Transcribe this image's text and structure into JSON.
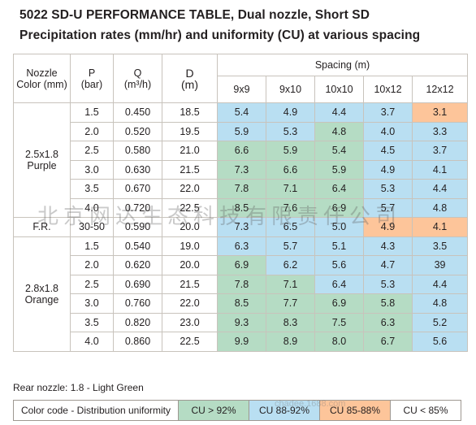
{
  "title": "5022 SD-U PERFORMANCE  TABLE, Dual nozzle, Short SD",
  "subtitle": "Precipitation rates (mm/hr) and uniformity (CU) at various spacing",
  "headers": {
    "nozzle": "Nozzle Color (mm)",
    "p": "P",
    "p_unit": "(bar)",
    "q": "Q",
    "q_unit": "(m³/h)",
    "d": "D",
    "d_unit": "(m)",
    "spacing": "Spacing (m)",
    "spacings": [
      "9x9",
      "9x10",
      "10x10",
      "10x12",
      "12x12"
    ]
  },
  "groups": [
    {
      "label_line1": "2.5x1.8",
      "label_line2": "Purple",
      "rows": [
        {
          "p": "1.5",
          "q": "0.450",
          "d": "18.5",
          "cells": [
            {
              "v": "5.4",
              "c": "b"
            },
            {
              "v": "4.9",
              "c": "b"
            },
            {
              "v": "4.4",
              "c": "b"
            },
            {
              "v": "3.7",
              "c": "b"
            },
            {
              "v": "3.1",
              "c": "o"
            }
          ]
        },
        {
          "p": "2.0",
          "q": "0.520",
          "d": "19.5",
          "cells": [
            {
              "v": "5.9",
              "c": "b"
            },
            {
              "v": "5.3",
              "c": "b"
            },
            {
              "v": "4.8",
              "c": "g"
            },
            {
              "v": "4.0",
              "c": "b"
            },
            {
              "v": "3.3",
              "c": "b"
            }
          ]
        },
        {
          "p": "2.5",
          "q": "0.580",
          "d": "21.0",
          "cells": [
            {
              "v": "6.6",
              "c": "g"
            },
            {
              "v": "5.9",
              "c": "g"
            },
            {
              "v": "5.4",
              "c": "g"
            },
            {
              "v": "4.5",
              "c": "b"
            },
            {
              "v": "3.7",
              "c": "b"
            }
          ]
        },
        {
          "p": "3.0",
          "q": "0.630",
          "d": "21.5",
          "cells": [
            {
              "v": "7.3",
              "c": "g"
            },
            {
              "v": "6.6",
              "c": "g"
            },
            {
              "v": "5.9",
              "c": "g"
            },
            {
              "v": "4.9",
              "c": "b"
            },
            {
              "v": "4.1",
              "c": "b"
            }
          ]
        },
        {
          "p": "3.5",
          "q": "0.670",
          "d": "22.0",
          "cells": [
            {
              "v": "7.8",
              "c": "g"
            },
            {
              "v": "7.1",
              "c": "g"
            },
            {
              "v": "6.4",
              "c": "g"
            },
            {
              "v": "5.3",
              "c": "b"
            },
            {
              "v": "4.4",
              "c": "b"
            }
          ]
        },
        {
          "p": "4.0",
          "q": "0.720",
          "d": "22.5",
          "cells": [
            {
              "v": "8.5",
              "c": "g"
            },
            {
              "v": "7.6",
              "c": "g"
            },
            {
              "v": "6.9",
              "c": "g"
            },
            {
              "v": "5.7",
              "c": "b"
            },
            {
              "v": "4.8",
              "c": "b"
            }
          ]
        }
      ]
    },
    {
      "label_line1": "F.R.",
      "label_line2": "",
      "rows": [
        {
          "p": "30-50",
          "q": "0.590",
          "d": "20.0",
          "cells": [
            {
              "v": "7.3",
              "c": "b"
            },
            {
              "v": "6.5",
              "c": "b"
            },
            {
              "v": "5.0",
              "c": "b"
            },
            {
              "v": "4.9",
              "c": "o"
            },
            {
              "v": "4.1",
              "c": "o"
            }
          ]
        }
      ]
    },
    {
      "label_line1": "2.8x1.8",
      "label_line2": "Orange",
      "rows": [
        {
          "p": "1.5",
          "q": "0.540",
          "d": "19.0",
          "cells": [
            {
              "v": "6.3",
              "c": "b"
            },
            {
              "v": "5.7",
              "c": "b"
            },
            {
              "v": "5.1",
              "c": "b"
            },
            {
              "v": "4.3",
              "c": "b"
            },
            {
              "v": "3.5",
              "c": "b"
            }
          ]
        },
        {
          "p": "2.0",
          "q": "0.620",
          "d": "20.0",
          "cells": [
            {
              "v": "6.9",
              "c": "g"
            },
            {
              "v": "6.2",
              "c": "b"
            },
            {
              "v": "5.6",
              "c": "b"
            },
            {
              "v": "4.7",
              "c": "b"
            },
            {
              "v": "39",
              "c": "b"
            }
          ]
        },
        {
          "p": "2.5",
          "q": "0.690",
          "d": "21.5",
          "cells": [
            {
              "v": "7.8",
              "c": "g"
            },
            {
              "v": "7.1",
              "c": "g"
            },
            {
              "v": "6.4",
              "c": "b"
            },
            {
              "v": "5.3",
              "c": "b"
            },
            {
              "v": "4.4",
              "c": "b"
            }
          ]
        },
        {
          "p": "3.0",
          "q": "0.760",
          "d": "22.0",
          "cells": [
            {
              "v": "8.5",
              "c": "g"
            },
            {
              "v": "7.7",
              "c": "g"
            },
            {
              "v": "6.9",
              "c": "g"
            },
            {
              "v": "5.8",
              "c": "g"
            },
            {
              "v": "4.8",
              "c": "b"
            }
          ]
        },
        {
          "p": "3.5",
          "q": "0.820",
          "d": "23.0",
          "cells": [
            {
              "v": "9.3",
              "c": "g"
            },
            {
              "v": "8.3",
              "c": "g"
            },
            {
              "v": "7.5",
              "c": "g"
            },
            {
              "v": "6.3",
              "c": "g"
            },
            {
              "v": "5.2",
              "c": "b"
            }
          ]
        },
        {
          "p": "4.0",
          "q": "0.860",
          "d": "22.5",
          "cells": [
            {
              "v": "9.9",
              "c": "g"
            },
            {
              "v": "8.9",
              "c": "g"
            },
            {
              "v": "8.0",
              "c": "g"
            },
            {
              "v": "6.7",
              "c": "g"
            },
            {
              "v": "5.6",
              "c": "b"
            }
          ]
        }
      ]
    }
  ],
  "rear_nozzle": "Rear nozzle: 1.8 - Light Green",
  "legend": {
    "label": "Color code - Distribution uniformity",
    "items": [
      {
        "text": "CU > 92%",
        "color": "#b5dcc4"
      },
      {
        "text": "CU 88-92%",
        "color": "#b9dff2"
      },
      {
        "text": "CU 85-88%",
        "color": "#fdc59a"
      },
      {
        "text": "CU < 85%",
        "color": "#ffffff"
      }
    ]
  },
  "colors": {
    "green": "#b5dcc4",
    "blue": "#b9dff2",
    "orange": "#fdc59a",
    "border": "#c8c3bc"
  },
  "watermark": "北京网达生态科技有限责任公司",
  "watermark_small": "chadee.1688.com"
}
